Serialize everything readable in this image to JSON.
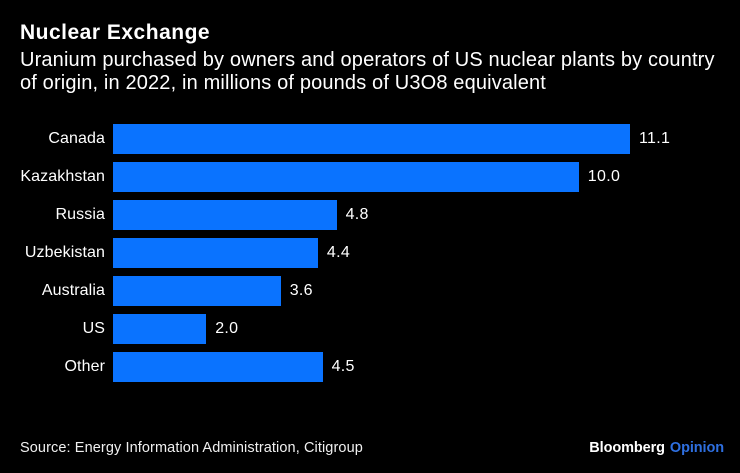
{
  "chart_data": {
    "type": "bar",
    "orientation": "horizontal",
    "title": "Nuclear Exchange",
    "subtitle_lines": [
      "Uranium purchased by owners and operators of US nuclear plants by country",
      "of origin, in 2022, in millions of pounds of U3O8 equivalent"
    ],
    "categories": [
      "Canada",
      "Kazakhstan",
      "Russia",
      "Uzbekistan",
      "Australia",
      "US",
      "Other"
    ],
    "values": [
      11.1,
      10.0,
      4.8,
      4.4,
      3.6,
      2.0,
      4.5
    ],
    "xlim": [
      0,
      11.1
    ],
    "grid": false,
    "legend": "none",
    "bar_color": "#0a73ff",
    "value_labels": "end-of-bar"
  },
  "footer": {
    "source": "Source: Energy Information Administration, Citigroup",
    "brand": "Bloomberg",
    "brand_suffix": "Opinion",
    "brand_suffix_color": "#2e6fe0"
  },
  "colors": {
    "background": "#000000",
    "text": "#ffffff"
  }
}
